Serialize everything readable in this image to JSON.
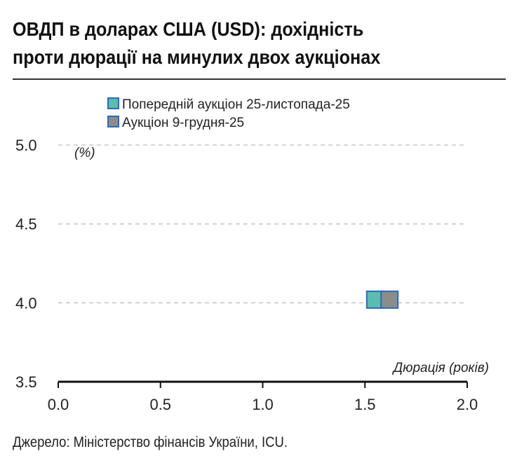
{
  "title_line1": "ОВДП в доларах США (USD): дохідність",
  "title_line2": "проти дюрації на минулих двох аукціонах",
  "source": "Джерело: Міністерство фінансів України, ICU.",
  "chart_data": {
    "type": "scatter",
    "ylabel": "(%)",
    "xlabel": "Дюрація (років)",
    "xlim": [
      0.0,
      2.0
    ],
    "ylim": [
      3.5,
      5.0
    ],
    "x_ticks": [
      "0.0",
      "0.5",
      "1.0",
      "1.5",
      "2.0"
    ],
    "y_ticks": [
      "5.0",
      "4.5",
      "4.0",
      "3.5"
    ],
    "grid": "horizontal dashed",
    "legend_position": "top-left",
    "series": [
      {
        "name": "Попередній аукціон 25-листопада-25",
        "color": "#5bbcb0",
        "border": "#2e6bb3",
        "points": [
          {
            "x": 1.55,
            "y": 4.02
          }
        ]
      },
      {
        "name": "Аукціон 9-грудня-25",
        "color": "#8c8c8c",
        "border": "#2e6bb3",
        "points": [
          {
            "x": 1.62,
            "y": 4.02
          }
        ]
      }
    ]
  }
}
